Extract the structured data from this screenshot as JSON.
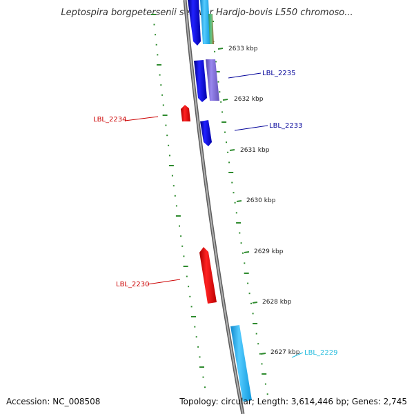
{
  "header": {
    "title": "Leptospira borgpetersenii serovar Hardjo-bovis L550 chromoso..."
  },
  "footer": {
    "accession": "Accession: NC_008508",
    "topology": "Topology: circular; Length: 3,614,446 bp; Genes: 2,745"
  },
  "colors": {
    "backbone": "#8a8a8a",
    "tick_dots": "#2e8b2e",
    "forward_strand": "#0000ee",
    "reverse_strand": "#ee0000",
    "light_blue": "#22bbee",
    "purple": "#7766cc",
    "teal_green": "#44aa77"
  },
  "ticks": [
    {
      "label": "2633 kbp",
      "kbp": 2633
    },
    {
      "label": "2632 kbp",
      "kbp": 2632
    },
    {
      "label": "2631 kbp",
      "kbp": 2631
    },
    {
      "label": "2630 kbp",
      "kbp": 2630
    },
    {
      "label": "2629 kbp",
      "kbp": 2629
    },
    {
      "label": "2628 kbp",
      "kbp": 2628
    },
    {
      "label": "2627 kbp",
      "kbp": 2627
    }
  ],
  "gene_labels": [
    {
      "label": "LBL_2235",
      "color": "#000099"
    },
    {
      "label": "LBL_2234",
      "color": "#cc0000"
    },
    {
      "label": "LBL_2233",
      "color": "#000099"
    },
    {
      "label": "LBL_2230",
      "color": "#cc0000"
    },
    {
      "label": "LBL_2229",
      "color": "#22bbdd"
    }
  ]
}
